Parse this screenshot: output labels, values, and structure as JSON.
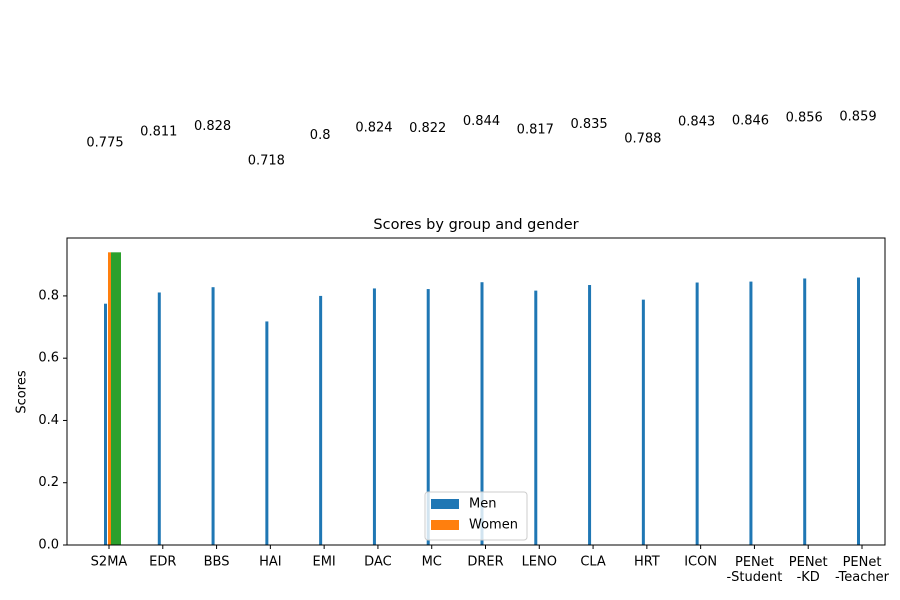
{
  "chart_data": {
    "type": "bar",
    "title": "Scores by group and gender",
    "ylabel": "Scores",
    "categories": [
      "S2MA",
      "EDR",
      "BBS",
      "HAI",
      "EMI",
      "DAC",
      "MC",
      "DRER",
      "LENO",
      "CLA",
      "HRT",
      "ICON",
      "PENet\n-Student",
      "PENet\n-KD",
      "PENet\n-Teacher"
    ],
    "series": [
      {
        "name": "Men",
        "color": "#1f77b4",
        "values": [
          0.775,
          0.811,
          0.828,
          0.718,
          0.8,
          0.824,
          0.822,
          0.844,
          0.817,
          0.835,
          0.788,
          0.843,
          0.846,
          0.856,
          0.859
        ]
      },
      {
        "name": "Women",
        "color": "#ff7f0e",
        "values": [
          0.94,
          null,
          null,
          null,
          null,
          null,
          null,
          null,
          null,
          null,
          null,
          null,
          null,
          null,
          null
        ]
      },
      {
        "color": "#2ca02c",
        "values": [
          0.94,
          null,
          null,
          null,
          null,
          null,
          null,
          null,
          null,
          null,
          null,
          null,
          null,
          null,
          null
        ]
      }
    ],
    "ylim": [
      0,
      0.986
    ],
    "yticks": [
      {
        "value": 0,
        "label": "0.0"
      },
      0.2,
      0.4,
      0.6,
      0.8
    ],
    "legend": "lower center"
  }
}
